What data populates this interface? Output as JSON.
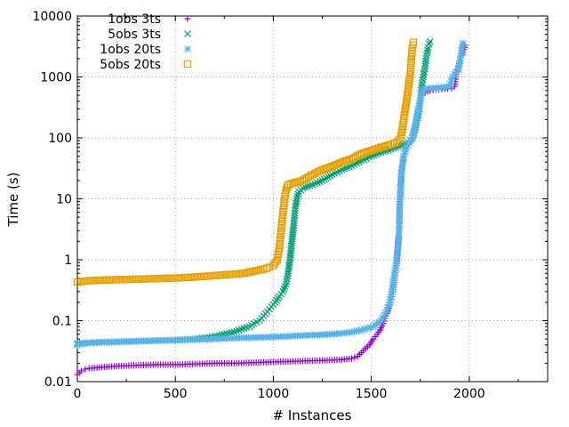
{
  "chart_data": {
    "type": "scatter",
    "title": "",
    "xlabel": "# Instances",
    "ylabel": "Time (s)",
    "xlim": [
      0,
      2400
    ],
    "ylim": [
      0.01,
      10000
    ],
    "yscale": "log",
    "grid": true,
    "legend_position": "top-left",
    "x_ticks": [
      0,
      500,
      1000,
      1500,
      2000
    ],
    "x_tick_labels": [
      "0",
      "500",
      "1000",
      "1500",
      "2000"
    ],
    "y_ticks": [
      0.01,
      0.1,
      1,
      10,
      100,
      1000,
      10000
    ],
    "y_tick_labels": [
      "0.01",
      "0.1",
      "1",
      "10",
      "100",
      "1000",
      "10000"
    ],
    "series": [
      {
        "name": "1obs 3ts",
        "color": "#9400d3",
        "marker": "plus",
        "points": [
          [
            0,
            0.013
          ],
          [
            10,
            0.014
          ],
          [
            20,
            0.015
          ],
          [
            40,
            0.016
          ],
          [
            60,
            0.0165
          ],
          [
            100,
            0.017
          ],
          [
            150,
            0.0175
          ],
          [
            200,
            0.018
          ],
          [
            300,
            0.0185
          ],
          [
            400,
            0.019
          ],
          [
            500,
            0.019
          ],
          [
            600,
            0.0195
          ],
          [
            700,
            0.02
          ],
          [
            800,
            0.02
          ],
          [
            900,
            0.0205
          ],
          [
            1000,
            0.021
          ],
          [
            1100,
            0.0215
          ],
          [
            1200,
            0.022
          ],
          [
            1300,
            0.0225
          ],
          [
            1350,
            0.023
          ],
          [
            1400,
            0.024
          ],
          [
            1430,
            0.026
          ],
          [
            1450,
            0.03
          ],
          [
            1470,
            0.035
          ],
          [
            1490,
            0.04
          ],
          [
            1510,
            0.05
          ],
          [
            1530,
            0.06
          ],
          [
            1545,
            0.07
          ],
          [
            1560,
            0.09
          ],
          [
            1575,
            0.12
          ],
          [
            1590,
            0.16
          ],
          [
            1600,
            0.2
          ],
          [
            1610,
            0.3
          ],
          [
            1620,
            0.5
          ],
          [
            1630,
            0.8
          ],
          [
            1635,
            1.5
          ],
          [
            1640,
            2.5
          ],
          [
            1643,
            4
          ],
          [
            1645,
            9
          ],
          [
            1648,
            14
          ],
          [
            1652,
            25
          ],
          [
            1658,
            35
          ],
          [
            1665,
            45
          ],
          [
            1672,
            60
          ],
          [
            1680,
            70
          ],
          [
            1690,
            80
          ],
          [
            1700,
            90
          ],
          [
            1710,
            100
          ],
          [
            1725,
            150
          ],
          [
            1740,
            300
          ],
          [
            1750,
            450
          ],
          [
            1760,
            500
          ],
          [
            1775,
            560
          ],
          [
            1800,
            600
          ],
          [
            1830,
            620
          ],
          [
            1860,
            630
          ],
          [
            1890,
            640
          ],
          [
            1910,
            650
          ],
          [
            1925,
            700
          ],
          [
            1935,
            1200
          ],
          [
            1945,
            1500
          ],
          [
            1955,
            2000
          ],
          [
            1965,
            2300
          ],
          [
            1972,
            2800
          ],
          [
            1978,
            3300
          ]
        ]
      },
      {
        "name": "5obs 3ts",
        "color": "#009e73",
        "marker": "cross",
        "points": [
          [
            0,
            0.042
          ],
          [
            100,
            0.044
          ],
          [
            200,
            0.045
          ],
          [
            300,
            0.046
          ],
          [
            400,
            0.047
          ],
          [
            500,
            0.048
          ],
          [
            600,
            0.05
          ],
          [
            650,
            0.052
          ],
          [
            700,
            0.055
          ],
          [
            750,
            0.06
          ],
          [
            800,
            0.065
          ],
          [
            850,
            0.075
          ],
          [
            880,
            0.08
          ],
          [
            900,
            0.09
          ],
          [
            930,
            0.1
          ],
          [
            950,
            0.12
          ],
          [
            970,
            0.14
          ],
          [
            990,
            0.17
          ],
          [
            1010,
            0.2
          ],
          [
            1030,
            0.25
          ],
          [
            1050,
            0.3
          ],
          [
            1065,
            0.4
          ],
          [
            1075,
            0.6
          ],
          [
            1085,
            1.0
          ],
          [
            1095,
            2.0
          ],
          [
            1105,
            4
          ],
          [
            1112,
            7
          ],
          [
            1120,
            10
          ],
          [
            1130,
            13
          ],
          [
            1150,
            15
          ],
          [
            1200,
            17
          ],
          [
            1250,
            20
          ],
          [
            1300,
            25
          ],
          [
            1350,
            30
          ],
          [
            1400,
            35
          ],
          [
            1450,
            42
          ],
          [
            1500,
            50
          ],
          [
            1550,
            58
          ],
          [
            1600,
            65
          ],
          [
            1650,
            75
          ],
          [
            1690,
            85
          ],
          [
            1710,
            100
          ],
          [
            1725,
            150
          ],
          [
            1740,
            250
          ],
          [
            1750,
            400
          ],
          [
            1755,
            600
          ],
          [
            1760,
            800
          ],
          [
            1765,
            1000
          ],
          [
            1770,
            1200
          ],
          [
            1775,
            1500
          ],
          [
            1780,
            2000
          ],
          [
            1785,
            2500
          ],
          [
            1790,
            3000
          ],
          [
            1795,
            3500
          ],
          [
            1800,
            3800
          ]
        ]
      },
      {
        "name": "1obs 20ts",
        "color": "#56b4e9",
        "marker": "star",
        "points": [
          [
            0,
            0.04
          ],
          [
            50,
            0.043
          ],
          [
            100,
            0.044
          ],
          [
            200,
            0.045
          ],
          [
            300,
            0.046
          ],
          [
            400,
            0.047
          ],
          [
            500,
            0.048
          ],
          [
            600,
            0.049
          ],
          [
            700,
            0.05
          ],
          [
            800,
            0.052
          ],
          [
            900,
            0.053
          ],
          [
            1000,
            0.054
          ],
          [
            1100,
            0.056
          ],
          [
            1200,
            0.058
          ],
          [
            1300,
            0.06
          ],
          [
            1350,
            0.062
          ],
          [
            1400,
            0.065
          ],
          [
            1450,
            0.07
          ],
          [
            1480,
            0.075
          ],
          [
            1510,
            0.08
          ],
          [
            1530,
            0.09
          ],
          [
            1550,
            0.1
          ],
          [
            1565,
            0.12
          ],
          [
            1580,
            0.15
          ],
          [
            1595,
            0.2
          ],
          [
            1605,
            0.3
          ],
          [
            1615,
            0.5
          ],
          [
            1625,
            0.8
          ],
          [
            1632,
            1.2
          ],
          [
            1638,
            2
          ],
          [
            1642,
            3
          ],
          [
            1645,
            8
          ],
          [
            1648,
            10
          ],
          [
            1655,
            30
          ],
          [
            1665,
            50
          ],
          [
            1680,
            70
          ],
          [
            1700,
            90
          ],
          [
            1715,
            110
          ],
          [
            1730,
            200
          ],
          [
            1740,
            300
          ],
          [
            1750,
            400
          ],
          [
            1760,
            600
          ],
          [
            1790,
            650
          ],
          [
            1830,
            660
          ],
          [
            1870,
            680
          ],
          [
            1900,
            700
          ],
          [
            1915,
            1000
          ],
          [
            1930,
            1200
          ],
          [
            1945,
            1300
          ],
          [
            1955,
            2000
          ],
          [
            1962,
            3000
          ],
          [
            1968,
            3600
          ]
        ]
      },
      {
        "name": "5obs 20ts",
        "color": "#e69f00",
        "marker": "square",
        "points": [
          [
            0,
            0.43
          ],
          [
            50,
            0.45
          ],
          [
            100,
            0.46
          ],
          [
            200,
            0.47
          ],
          [
            300,
            0.48
          ],
          [
            400,
            0.49
          ],
          [
            500,
            0.5
          ],
          [
            600,
            0.52
          ],
          [
            700,
            0.55
          ],
          [
            800,
            0.58
          ],
          [
            850,
            0.6
          ],
          [
            900,
            0.65
          ],
          [
            950,
            0.7
          ],
          [
            980,
            0.75
          ],
          [
            1000,
            0.8
          ],
          [
            1020,
            1.0
          ],
          [
            1030,
            1.5
          ],
          [
            1040,
            3
          ],
          [
            1050,
            6
          ],
          [
            1058,
            10
          ],
          [
            1065,
            14
          ],
          [
            1075,
            17
          ],
          [
            1100,
            18
          ],
          [
            1150,
            20
          ],
          [
            1200,
            25
          ],
          [
            1250,
            30
          ],
          [
            1300,
            34
          ],
          [
            1350,
            40
          ],
          [
            1400,
            45
          ],
          [
            1450,
            55
          ],
          [
            1500,
            62
          ],
          [
            1550,
            70
          ],
          [
            1600,
            78
          ],
          [
            1630,
            85
          ],
          [
            1650,
            100
          ],
          [
            1660,
            150
          ],
          [
            1670,
            250
          ],
          [
            1680,
            400
          ],
          [
            1690,
            700
          ],
          [
            1700,
            1200
          ],
          [
            1705,
            2000
          ],
          [
            1710,
            3000
          ],
          [
            1715,
            3700
          ]
        ]
      }
    ]
  }
}
